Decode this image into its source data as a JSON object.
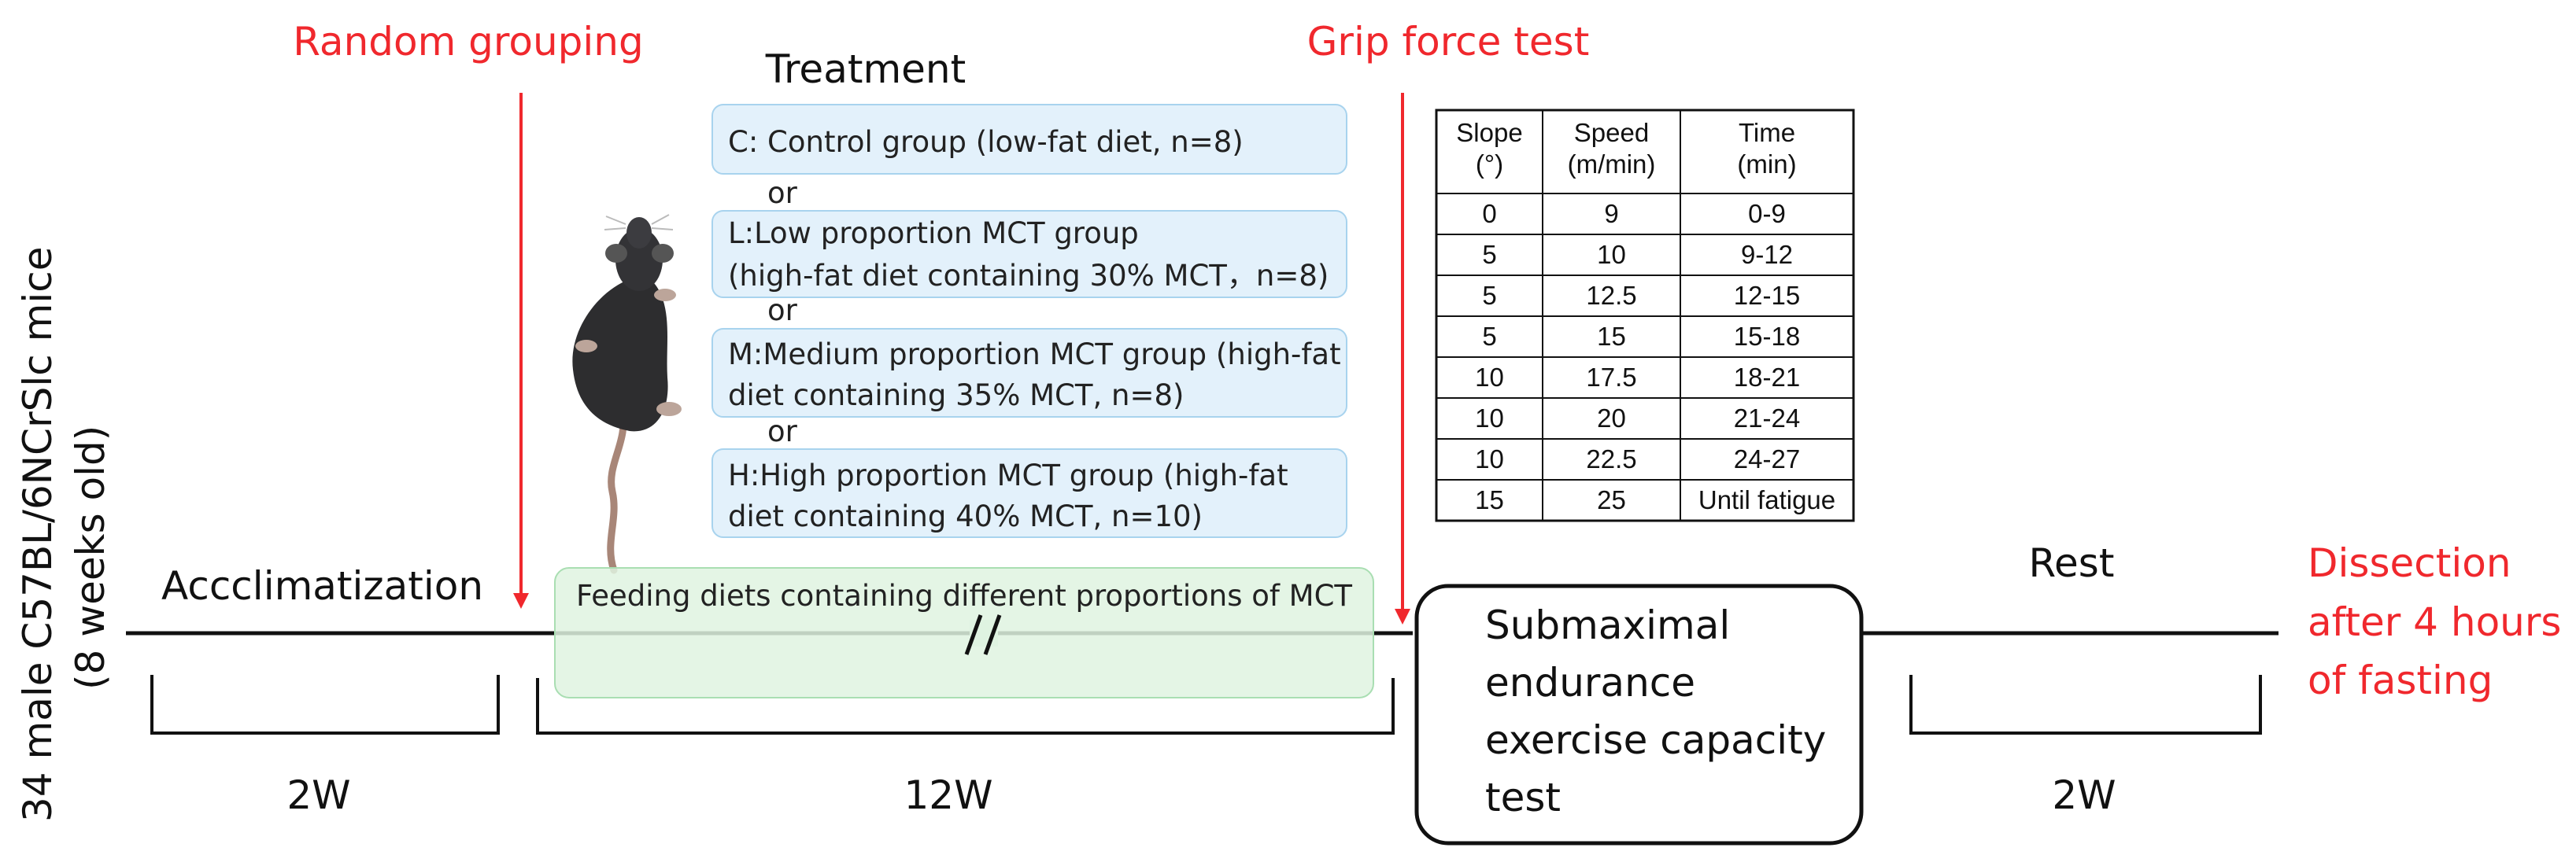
{
  "side_label": {
    "line1": "34 male C57BL/6NCrSlc mice",
    "line2": "(8 weeks old)"
  },
  "events": {
    "random_grouping": "Random grouping",
    "grip_force_test": "Grip force test",
    "dissection": [
      "Dissection",
      "after 4 hours",
      "of fasting"
    ]
  },
  "phases": {
    "acclimatization": "Accclimatization",
    "feeding": "Feeding diets containing different proportions of MCT",
    "exercise_test": [
      "Submaximal",
      "endurance",
      "exercise capacity",
      "test"
    ],
    "rest": "Rest"
  },
  "durations": {
    "acclimatization": "2W",
    "feeding": "12W",
    "rest": "2W"
  },
  "treatment": {
    "title": "Treatment",
    "separator": "or",
    "groups": [
      {
        "lines": [
          "C: Control group (low-fat diet, n=8)"
        ]
      },
      {
        "lines": [
          "L:Low proportion MCT group",
          " (high-fat diet containing 30% MCT，n=8)"
        ]
      },
      {
        "lines": [
          "M:Medium proportion MCT group (high-fat",
          "diet containing 35% MCT, n=8)"
        ]
      },
      {
        "lines": [
          "H:High proportion MCT group (high-fat",
          "diet containing 40% MCT, n=10)"
        ]
      }
    ]
  },
  "protocol_table": {
    "headers": [
      [
        "Slope",
        "(°)"
      ],
      [
        "Speed",
        "(m/min)"
      ],
      [
        "Time",
        "(min)"
      ]
    ],
    "rows": [
      [
        "0",
        "9",
        "0-9"
      ],
      [
        "5",
        "10",
        "9-12"
      ],
      [
        "5",
        "12.5",
        "12-15"
      ],
      [
        "5",
        "15",
        "15-18"
      ],
      [
        "10",
        "17.5",
        "18-21"
      ],
      [
        "10",
        "20",
        "21-24"
      ],
      [
        "10",
        "22.5",
        "24-27"
      ],
      [
        "15",
        "25",
        "Until fatigue"
      ]
    ]
  },
  "colors": {
    "accent_red": "#f0282d",
    "group_box_fill": "#e3f1fb",
    "group_box_stroke": "#a8d3ee",
    "feeding_box_fill": "#dff3e1",
    "feeding_box_stroke": "#a9deb2",
    "mouse_body": "#2d2d2f",
    "mouse_tail": "#a88678"
  },
  "icons": {
    "mouse": "mouse-illustration-icon",
    "break": "timeline-break-icon"
  }
}
